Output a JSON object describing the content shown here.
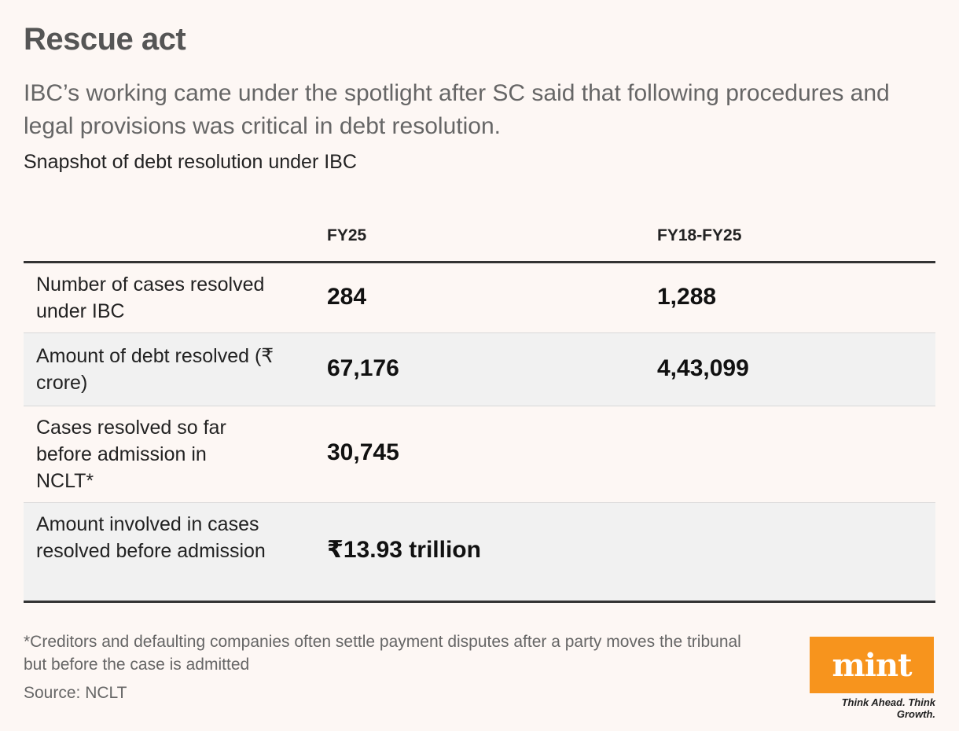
{
  "header": {
    "title": "Rescue act",
    "subtitle": "IBC’s working came under the spotlight after SC said that following procedures and legal provisions was critical in debt resolution.",
    "caption": "Snapshot of debt resolution under IBC"
  },
  "chart_data": {
    "type": "table",
    "columns": [
      "",
      "FY25",
      "FY18-FY25"
    ],
    "rows": [
      {
        "label": "Number of cases resolved under IBC",
        "fy25": "284",
        "fy18_fy25": "1,288"
      },
      {
        "label": "Amount of debt resolved (₹ crore)",
        "fy25": "67,176",
        "fy18_fy25": "4,43,099"
      },
      {
        "label": "Cases resolved so far before admission in NCLT*",
        "fy25": "30,745",
        "fy18_fy25": ""
      },
      {
        "label": "Amount involved in cases resolved before admission",
        "fy25": "₹13.93 trillion",
        "fy18_fy25": ""
      }
    ]
  },
  "footer": {
    "note": "*Creditors and defaulting companies often settle payment disputes after a party moves the tribunal but before the case is admitted",
    "source": "Source: NCLT"
  },
  "brand": {
    "logo": "mint",
    "tagline": "Think Ahead. Think Growth.",
    "color": "#f7941d"
  }
}
